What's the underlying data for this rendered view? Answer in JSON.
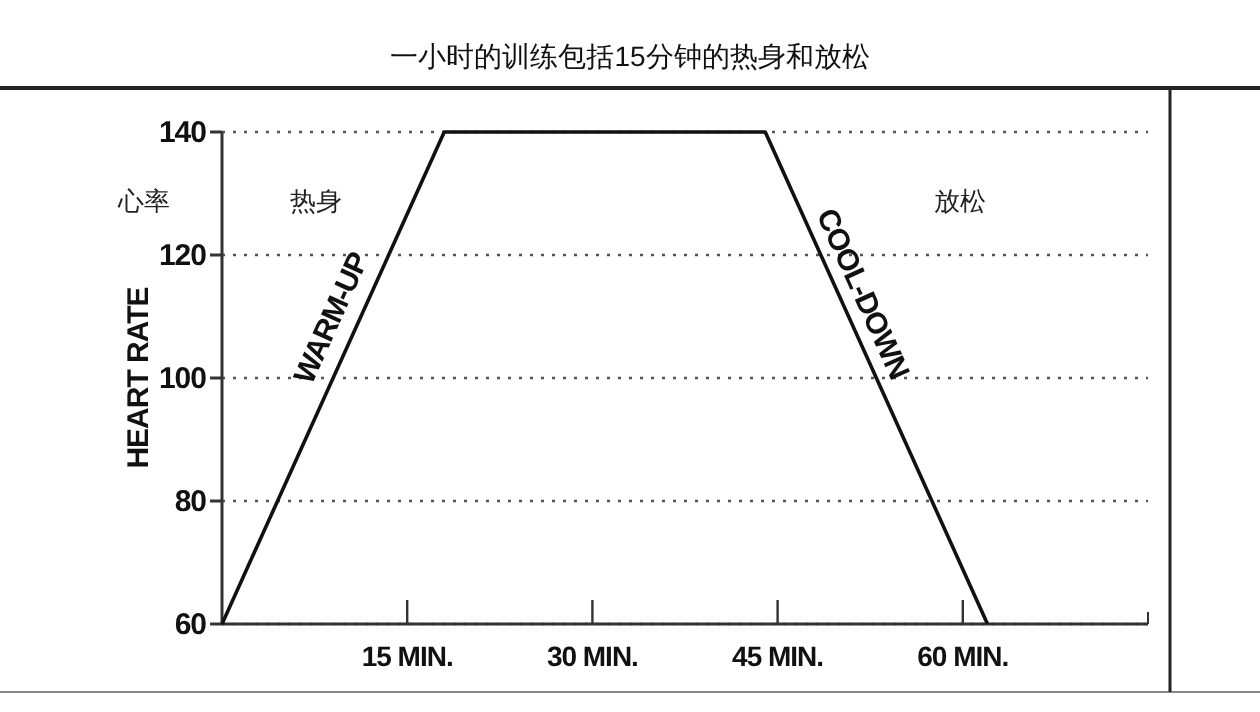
{
  "chart_data": {
    "type": "line",
    "title": "一小时的训练包括15分钟的热身和放松",
    "ylabel": "HEART RATE",
    "x": [
      0,
      18,
      44,
      62
    ],
    "values": [
      60,
      140,
      140,
      60
    ],
    "color": "#111111",
    "xlim": [
      0,
      75
    ],
    "ylim": [
      60,
      140
    ],
    "xticks": [
      {
        "value": 15,
        "label": "15 MIN."
      },
      {
        "value": 30,
        "label": "30 MIN."
      },
      {
        "value": 45,
        "label": "45 MIN."
      },
      {
        "value": 60,
        "label": "60 MIN."
      }
    ],
    "yticks": [
      60,
      80,
      100,
      120,
      140
    ],
    "grid": "y",
    "marker": "none",
    "line_style": "solid",
    "annotations": [
      "心率",
      "热身",
      "放松",
      {
        "text": "WARM-UP",
        "x": 10.75,
        "y": 108
      },
      {
        "text": "COOL-DOWN",
        "x": 50,
        "y": 112
      }
    ]
  }
}
